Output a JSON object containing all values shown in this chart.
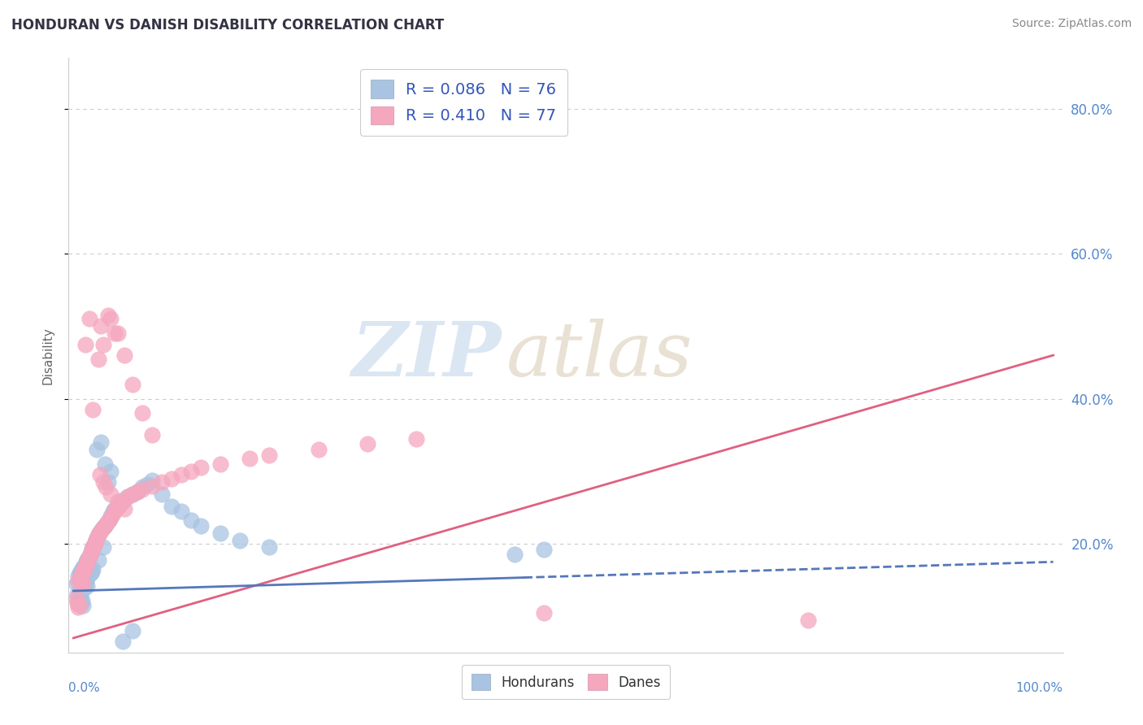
{
  "title": "HONDURAN VS DANISH DISABILITY CORRELATION CHART",
  "source": "Source: ZipAtlas.com",
  "ylabel": "Disability",
  "xlim": [
    -0.005,
    1.01
  ],
  "ylim": [
    0.05,
    0.87
  ],
  "ytick_vals": [
    0.2,
    0.4,
    0.6,
    0.8
  ],
  "ytick_labels": [
    "20.0%",
    "40.0%",
    "60.0%",
    "80.0%"
  ],
  "honduran_color": "#a8c4e2",
  "danish_color": "#f5a7be",
  "honduran_line_color": "#5577bb",
  "danish_line_color": "#e06080",
  "watermark_zip": "ZIP",
  "watermark_atlas": "atlas",
  "background_color": "#ffffff",
  "hon_line_solid_end": 0.46,
  "dan_line_y0": 0.07,
  "dan_line_y1": 0.46,
  "hon_line_y0": 0.135,
  "hon_line_y1": 0.175,
  "honduran_scatter_x": [
    0.003,
    0.004,
    0.005,
    0.005,
    0.006,
    0.006,
    0.007,
    0.007,
    0.008,
    0.008,
    0.009,
    0.009,
    0.01,
    0.01,
    0.01,
    0.011,
    0.011,
    0.012,
    0.012,
    0.013,
    0.013,
    0.014,
    0.014,
    0.015,
    0.015,
    0.016,
    0.016,
    0.017,
    0.018,
    0.018,
    0.019,
    0.019,
    0.02,
    0.02,
    0.021,
    0.022,
    0.023,
    0.024,
    0.025,
    0.025,
    0.026,
    0.028,
    0.03,
    0.03,
    0.032,
    0.034,
    0.035,
    0.036,
    0.038,
    0.04,
    0.042,
    0.045,
    0.048,
    0.05,
    0.055,
    0.06,
    0.065,
    0.07,
    0.075,
    0.08,
    0.09,
    0.1,
    0.11,
    0.12,
    0.13,
    0.15,
    0.17,
    0.2,
    0.45,
    0.48,
    0.024,
    0.028,
    0.032,
    0.038,
    0.05,
    0.06
  ],
  "honduran_scatter_y": [
    0.145,
    0.13,
    0.155,
    0.12,
    0.16,
    0.125,
    0.162,
    0.128,
    0.158,
    0.118,
    0.165,
    0.122,
    0.168,
    0.148,
    0.115,
    0.17,
    0.14,
    0.172,
    0.145,
    0.175,
    0.148,
    0.178,
    0.142,
    0.18,
    0.155,
    0.182,
    0.158,
    0.185,
    0.188,
    0.16,
    0.192,
    0.162,
    0.195,
    0.165,
    0.198,
    0.202,
    0.205,
    0.208,
    0.212,
    0.178,
    0.215,
    0.218,
    0.222,
    0.195,
    0.225,
    0.228,
    0.285,
    0.232,
    0.238,
    0.245,
    0.248,
    0.252,
    0.256,
    0.26,
    0.265,
    0.268,
    0.272,
    0.278,
    0.282,
    0.288,
    0.268,
    0.252,
    0.245,
    0.232,
    0.225,
    0.215,
    0.205,
    0.195,
    0.185,
    0.192,
    0.33,
    0.34,
    0.31,
    0.3,
    0.065,
    0.08
  ],
  "danish_scatter_x": [
    0.003,
    0.004,
    0.005,
    0.005,
    0.006,
    0.006,
    0.007,
    0.008,
    0.009,
    0.01,
    0.01,
    0.011,
    0.012,
    0.013,
    0.014,
    0.015,
    0.016,
    0.017,
    0.018,
    0.019,
    0.02,
    0.021,
    0.022,
    0.023,
    0.024,
    0.025,
    0.026,
    0.028,
    0.03,
    0.032,
    0.034,
    0.036,
    0.038,
    0.04,
    0.042,
    0.045,
    0.048,
    0.05,
    0.055,
    0.06,
    0.065,
    0.07,
    0.08,
    0.09,
    0.1,
    0.11,
    0.12,
    0.13,
    0.15,
    0.18,
    0.2,
    0.25,
    0.3,
    0.35,
    0.027,
    0.03,
    0.033,
    0.038,
    0.045,
    0.052,
    0.028,
    0.035,
    0.042,
    0.025,
    0.03,
    0.75,
    0.48,
    0.012,
    0.016,
    0.02,
    0.038,
    0.045,
    0.052,
    0.06,
    0.07,
    0.08
  ],
  "danish_scatter_y": [
    0.125,
    0.118,
    0.148,
    0.112,
    0.152,
    0.115,
    0.155,
    0.148,
    0.158,
    0.162,
    0.145,
    0.165,
    0.168,
    0.172,
    0.175,
    0.178,
    0.182,
    0.185,
    0.188,
    0.192,
    0.195,
    0.198,
    0.202,
    0.205,
    0.208,
    0.212,
    0.215,
    0.218,
    0.222,
    0.225,
    0.228,
    0.232,
    0.236,
    0.242,
    0.246,
    0.25,
    0.255,
    0.258,
    0.265,
    0.268,
    0.272,
    0.275,
    0.28,
    0.285,
    0.29,
    0.295,
    0.3,
    0.305,
    0.31,
    0.318,
    0.322,
    0.33,
    0.338,
    0.345,
    0.295,
    0.285,
    0.278,
    0.268,
    0.258,
    0.248,
    0.5,
    0.515,
    0.49,
    0.455,
    0.475,
    0.095,
    0.105,
    0.475,
    0.51,
    0.385,
    0.51,
    0.49,
    0.46,
    0.42,
    0.38,
    0.35
  ]
}
